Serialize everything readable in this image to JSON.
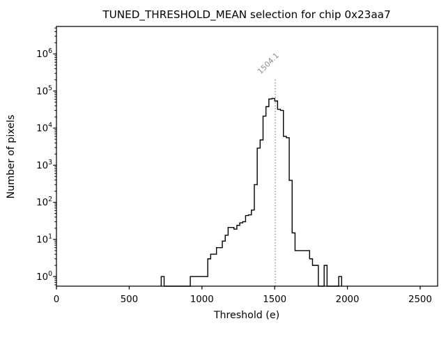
{
  "figure": {
    "background": "#ffffff",
    "line_color": "#000000",
    "annotation_color": "#8c8c8c"
  },
  "chart_data": {
    "type": "bar",
    "subtype": "step-histogram",
    "title": "TUNED_THRESHOLD_MEAN selection for chip 0x23aa7",
    "xlabel": "Threshold (e)",
    "ylabel": "Number of pixels",
    "y_scale": "log",
    "xlim": [
      0,
      2620
    ],
    "ylim": [
      0.55,
      5500000
    ],
    "x_ticks": [
      0,
      500,
      1000,
      1500,
      2000,
      2500
    ],
    "y_tick_exponents": [
      0,
      1,
      2,
      3,
      4,
      5,
      6
    ],
    "grid": "off",
    "legend": "none",
    "bin_width": 20,
    "bins": [
      [
        720,
        1
      ],
      [
        920,
        1
      ],
      [
        940,
        1
      ],
      [
        960,
        1
      ],
      [
        980,
        1
      ],
      [
        1000,
        1
      ],
      [
        1020,
        1
      ],
      [
        1040,
        3
      ],
      [
        1060,
        4
      ],
      [
        1080,
        4
      ],
      [
        1100,
        6
      ],
      [
        1120,
        6
      ],
      [
        1140,
        9
      ],
      [
        1160,
        13
      ],
      [
        1180,
        21
      ],
      [
        1200,
        21
      ],
      [
        1220,
        19
      ],
      [
        1240,
        24
      ],
      [
        1260,
        28
      ],
      [
        1280,
        30
      ],
      [
        1300,
        44
      ],
      [
        1320,
        46
      ],
      [
        1340,
        62
      ],
      [
        1360,
        300
      ],
      [
        1380,
        2900
      ],
      [
        1400,
        4800
      ],
      [
        1420,
        21000
      ],
      [
        1440,
        38000
      ],
      [
        1460,
        61000
      ],
      [
        1480,
        63000
      ],
      [
        1500,
        54000
      ],
      [
        1520,
        32000
      ],
      [
        1540,
        30000
      ],
      [
        1560,
        6000
      ],
      [
        1580,
        5500
      ],
      [
        1600,
        390
      ],
      [
        1620,
        15
      ],
      [
        1640,
        5
      ],
      [
        1660,
        5
      ],
      [
        1680,
        5
      ],
      [
        1700,
        5
      ],
      [
        1720,
        5
      ],
      [
        1740,
        3
      ],
      [
        1760,
        2
      ],
      [
        1780,
        2
      ],
      [
        1840,
        2
      ],
      [
        1940,
        1
      ]
    ],
    "vline": {
      "x": 1504.1,
      "label": "1504.1",
      "style": "dotted",
      "color": "#8c8c8c"
    }
  }
}
